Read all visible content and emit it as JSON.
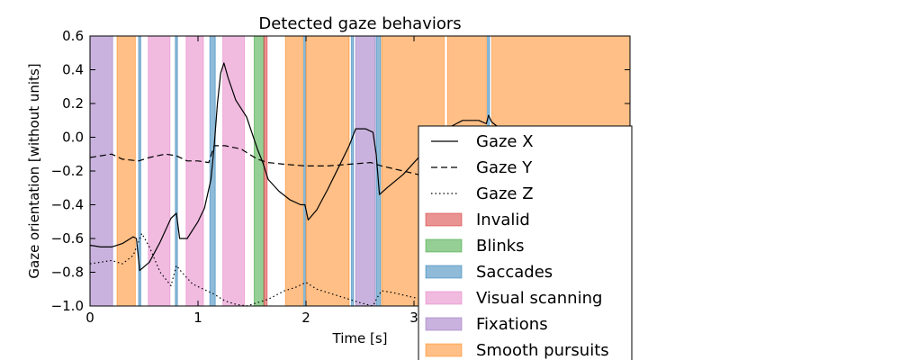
{
  "chart_data": {
    "type": "line",
    "title": "Detected gaze behaviors",
    "xlabel": "Time [s]",
    "ylabel": "Gaze orientation [without units]",
    "xlim": [
      0,
      5
    ],
    "ylim": [
      -1.0,
      0.6
    ],
    "grid": false,
    "legend_position": "right",
    "x_ticks": [
      0,
      1,
      2,
      3
    ],
    "x_tick_labels": [
      "0",
      "1",
      "2",
      "3"
    ],
    "y_ticks": [
      0.6,
      0.4,
      0.2,
      0.0,
      -0.2,
      -0.4,
      -0.6,
      -0.8,
      -1.0
    ],
    "y_tick_labels": [
      "0.6",
      "0.4",
      "0.2",
      "0.0",
      "−0.2",
      "−0.4",
      "−0.6",
      "−0.8",
      "−1.0"
    ],
    "segments": [
      {
        "category": "fixations",
        "start": 0.0,
        "end": 0.21
      },
      {
        "category": "smooth_pursuits",
        "start": 0.25,
        "end": 0.42
      },
      {
        "category": "saccades",
        "start": 0.45,
        "end": 0.47
      },
      {
        "category": "visual_scanning",
        "start": 0.54,
        "end": 0.74
      },
      {
        "category": "saccades",
        "start": 0.79,
        "end": 0.81
      },
      {
        "category": "visual_scanning",
        "start": 0.89,
        "end": 1.05
      },
      {
        "category": "saccades",
        "start": 1.11,
        "end": 1.16
      },
      {
        "category": "visual_scanning",
        "start": 1.23,
        "end": 1.43
      },
      {
        "category": "blinks",
        "start": 1.52,
        "end": 1.61
      },
      {
        "category": "invalid",
        "start": 1.61,
        "end": 1.64
      },
      {
        "category": "smooth_pursuits",
        "start": 1.81,
        "end": 1.97
      },
      {
        "category": "saccades",
        "start": 1.98,
        "end": 2.0
      },
      {
        "category": "smooth_pursuits",
        "start": 2.0,
        "end": 2.4
      },
      {
        "category": "saccades",
        "start": 2.42,
        "end": 2.44
      },
      {
        "category": "fixations",
        "start": 2.46,
        "end": 2.64
      },
      {
        "category": "saccades",
        "start": 2.65,
        "end": 2.69
      },
      {
        "category": "smooth_pursuits",
        "start": 2.7,
        "end": 3.28
      },
      {
        "category": "smooth_pursuits",
        "start": 3.31,
        "end": 3.67
      },
      {
        "category": "saccades",
        "start": 3.68,
        "end": 3.7
      },
      {
        "category": "smooth_pursuits",
        "start": 3.72,
        "end": 5.0
      }
    ],
    "series": [
      {
        "name": "Gaze X",
        "style": "solid",
        "x": [
          0.0,
          0.1,
          0.2,
          0.3,
          0.4,
          0.43,
          0.46,
          0.55,
          0.65,
          0.75,
          0.8,
          0.83,
          0.9,
          1.0,
          1.06,
          1.12,
          1.15,
          1.18,
          1.21,
          1.24,
          1.28,
          1.35,
          1.45,
          1.55,
          1.6,
          1.65,
          1.75,
          1.85,
          1.95,
          1.99,
          2.02,
          2.1,
          2.2,
          2.3,
          2.4,
          2.43,
          2.46,
          2.55,
          2.62,
          2.65,
          2.68,
          2.75,
          2.9,
          3.1,
          3.3,
          3.45,
          3.6,
          3.67,
          3.69,
          3.72,
          3.8,
          4.0,
          5.0
        ],
        "y": [
          -0.64,
          -0.65,
          -0.65,
          -0.63,
          -0.59,
          -0.6,
          -0.79,
          -0.74,
          -0.62,
          -0.48,
          -0.45,
          -0.6,
          -0.6,
          -0.5,
          -0.42,
          -0.25,
          -0.05,
          0.2,
          0.38,
          0.44,
          0.35,
          0.22,
          0.12,
          -0.07,
          -0.15,
          -0.25,
          -0.32,
          -0.37,
          -0.4,
          -0.4,
          -0.49,
          -0.43,
          -0.31,
          -0.18,
          -0.05,
          0.0,
          0.05,
          0.05,
          0.03,
          -0.1,
          -0.34,
          -0.3,
          -0.22,
          -0.08,
          0.05,
          0.1,
          0.1,
          0.08,
          0.13,
          0.09,
          0.05,
          0.0,
          -0.2
        ]
      },
      {
        "name": "Gaze Y",
        "style": "dashed",
        "x": [
          0.0,
          0.1,
          0.2,
          0.3,
          0.45,
          0.55,
          0.7,
          0.8,
          0.9,
          1.0,
          1.1,
          1.15,
          1.25,
          1.4,
          1.55,
          1.65,
          1.8,
          2.0,
          2.2,
          2.4,
          2.6,
          2.7,
          2.9,
          3.1,
          3.3,
          3.6,
          4.0,
          5.0
        ],
        "y": [
          -0.12,
          -0.11,
          -0.1,
          -0.13,
          -0.14,
          -0.12,
          -0.1,
          -0.11,
          -0.14,
          -0.14,
          -0.15,
          -0.05,
          -0.05,
          -0.07,
          -0.13,
          -0.15,
          -0.16,
          -0.17,
          -0.17,
          -0.16,
          -0.15,
          -0.17,
          -0.2,
          -0.23,
          -0.21,
          -0.2,
          -0.22,
          -0.25
        ]
      },
      {
        "name": "Gaze Z",
        "style": "dotted",
        "x": [
          0.0,
          0.1,
          0.2,
          0.3,
          0.4,
          0.45,
          0.48,
          0.55,
          0.65,
          0.75,
          0.8,
          0.85,
          0.95,
          1.05,
          1.15,
          1.25,
          1.35,
          1.45,
          1.55,
          1.65,
          1.8,
          1.9,
          2.0,
          2.1,
          2.3,
          2.5,
          2.62,
          2.66,
          2.7,
          2.8,
          3.0,
          3.2,
          3.4,
          3.6,
          3.8,
          4.0,
          5.0
        ],
        "y": [
          -0.75,
          -0.74,
          -0.73,
          -0.75,
          -0.7,
          -0.62,
          -0.57,
          -0.65,
          -0.8,
          -0.88,
          -0.76,
          -0.8,
          -0.87,
          -0.9,
          -0.93,
          -0.97,
          -0.99,
          -1.0,
          -0.98,
          -0.96,
          -0.91,
          -0.89,
          -0.86,
          -0.9,
          -0.94,
          -0.98,
          -1.0,
          -0.95,
          -0.91,
          -0.92,
          -0.95,
          -0.97,
          -0.98,
          -0.99,
          -1.0,
          -1.0,
          -1.0
        ]
      }
    ],
    "legend_entries": [
      {
        "key": "gaze_x",
        "label": "Gaze X",
        "kind": "line",
        "style": "solid"
      },
      {
        "key": "gaze_y",
        "label": "Gaze Y",
        "kind": "line",
        "style": "dashed"
      },
      {
        "key": "gaze_z",
        "label": "Gaze Z",
        "kind": "line",
        "style": "dotted"
      },
      {
        "key": "invalid",
        "label": "Invalid",
        "kind": "patch"
      },
      {
        "key": "blinks",
        "label": "Blinks",
        "kind": "patch"
      },
      {
        "key": "saccades",
        "label": "Saccades",
        "kind": "patch"
      },
      {
        "key": "visual_scanning",
        "label": "Visual scanning",
        "kind": "patch"
      },
      {
        "key": "fixations",
        "label": "Fixations",
        "kind": "patch"
      },
      {
        "key": "smooth_pursuits",
        "label": "Smooth pursuits",
        "kind": "patch"
      }
    ],
    "colors": {
      "invalid": "#d62728",
      "blinks": "#2ca02c",
      "saccades": "#1f77b4",
      "visual_scanning": "#e377c2",
      "fixations": "#9467bd",
      "smooth_pursuits": "#ff7f0e",
      "line": "#000000"
    }
  }
}
